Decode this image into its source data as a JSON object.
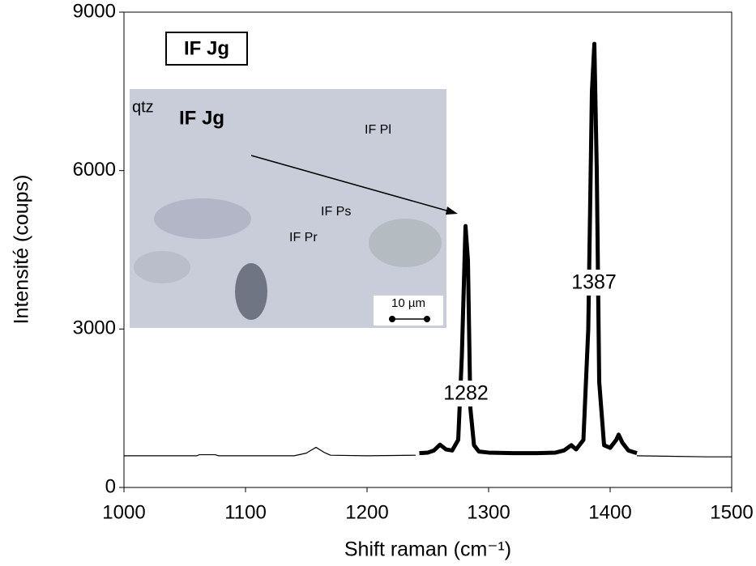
{
  "chart_data": {
    "type": "line",
    "xlabel": "Shift raman (cm⁻¹)",
    "ylabel": "Intensité (coups)",
    "xlim": [
      1000,
      1500
    ],
    "xticks": [
      1000,
      1100,
      1200,
      1300,
      1400,
      1500
    ],
    "ylim": [
      0,
      9000
    ],
    "yticks": [
      0,
      3000,
      6000,
      9000
    ],
    "grid": false,
    "series": [
      {
        "color": "#000000",
        "x": [
          1000,
          1060,
          1062,
          1075,
          1078,
          1140,
          1150,
          1158,
          1165,
          1170,
          1200,
          1240,
          1330,
          1422,
          1450,
          1480,
          1500
        ],
        "values": [
          600,
          600,
          620,
          620,
          600,
          600,
          650,
          760,
          660,
          610,
          600,
          610,
          null,
          600,
          590,
          580,
          580
        ]
      },
      {
        "color": "#000000",
        "x": [
          1243,
          1250,
          1255,
          1260,
          1265,
          1270,
          1275,
          1278,
          1281,
          1283,
          1285,
          1288,
          1292,
          1300,
          1320,
          1340,
          1355,
          1362,
          1368,
          1372,
          1378,
          1382,
          1385,
          1387,
          1389,
          1391,
          1395,
          1400,
          1405,
          1407,
          1410,
          1415,
          1422
        ],
        "values": [
          650,
          660,
          700,
          810,
          720,
          700,
          900,
          2500,
          4950,
          4300,
          1500,
          800,
          680,
          660,
          650,
          650,
          660,
          700,
          800,
          720,
          900,
          3000,
          7500,
          8400,
          6000,
          2000,
          800,
          750,
          900,
          1000,
          850,
          700,
          650
        ]
      }
    ],
    "annotations": [
      "IF Jg",
      "1282",
      "1387"
    ],
    "inset_labels": [
      "qtz",
      "IF Jg",
      "IF Pl",
      "IF Ps",
      "IF Pr",
      "10 µm"
    ]
  }
}
